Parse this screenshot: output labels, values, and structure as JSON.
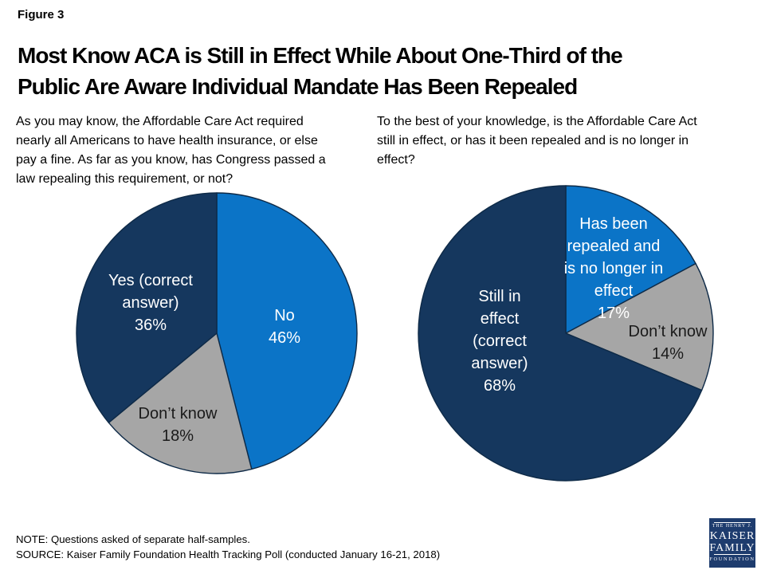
{
  "figure_label": "Figure 3",
  "title": "Most Know ACA is Still in Effect While About One-Third of the\nPublic Are Aware Individual Mandate Has Been Repealed",
  "colors": {
    "light_blue": "#0b74c7",
    "navy": "#15375e",
    "gray": "#a6a6a6",
    "slice_stroke": "#0e2a47",
    "logo_navy": "#1e3c6e"
  },
  "chart_data": [
    {
      "type": "pie",
      "question": "As you may know, the Affordable Care Act required\nnearly all Americans to have health insurance, or else\npay a fine. As far as you know, has Congress passed a\nlaw repealing this requirement, or not?",
      "start_angle_deg": 0,
      "direction": "clockwise",
      "slices": [
        {
          "label": "No",
          "value": 46,
          "unit": "%",
          "color": "#0b74c7",
          "text_color": "#ffffff",
          "display": "No\n46%"
        },
        {
          "label": "Don’t know",
          "value": 18,
          "unit": "%",
          "color": "#a6a6a6",
          "text_color": "#1a1a1a",
          "display": "Don’t know\n18%"
        },
        {
          "label": "Yes (correct answer)",
          "value": 36,
          "unit": "%",
          "color": "#15375e",
          "text_color": "#ffffff",
          "display": "Yes (correct\nanswer)\n36%"
        }
      ]
    },
    {
      "type": "pie",
      "question": "To the best of your knowledge, is the Affordable Care Act\nstill in effect, or has it been repealed and is no longer in\neffect?",
      "start_angle_deg": 0,
      "direction": "clockwise",
      "slices": [
        {
          "label": "Has been repealed and is no longer in effect",
          "value": 17,
          "unit": "%",
          "color": "#0b74c7",
          "text_color": "#ffffff",
          "display": "Has been\nrepealed and\nis no longer in\neffect\n17%"
        },
        {
          "label": "Don’t know",
          "value": 14,
          "unit": "%",
          "color": "#a6a6a6",
          "text_color": "#1a1a1a",
          "display": "Don’t know\n14%"
        },
        {
          "label": "Still in effect (correct answer)",
          "value": 68,
          "unit": "%",
          "color": "#15375e",
          "text_color": "#ffffff",
          "display": "Still in\neffect\n(correct\nanswer)\n68%"
        }
      ]
    }
  ],
  "note": "NOTE: Questions asked of separate half-samples.",
  "source": "SOURCE: Kaiser Family Foundation Health Tracking Poll (conducted January 16-21, 2018)",
  "logo": {
    "line1": "THE HENRY J.",
    "line2": "KAISER",
    "line3": "FAMILY",
    "line4": "FOUNDATION"
  }
}
